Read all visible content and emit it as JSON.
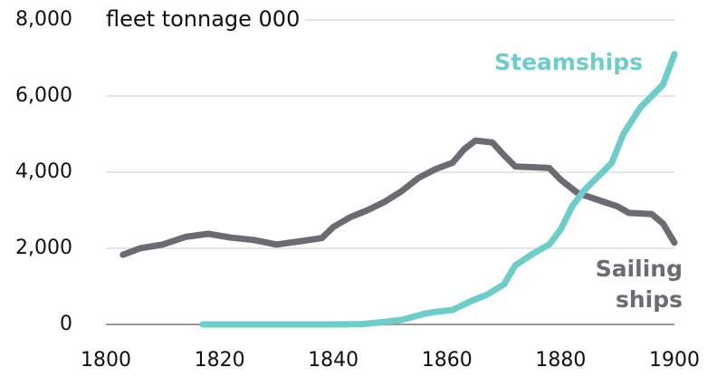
{
  "chart_data": {
    "type": "line",
    "title": "fleet tonnage 000",
    "xlim": [
      1800,
      1900
    ],
    "xticks": [
      1800,
      1820,
      1840,
      1860,
      1880,
      1900
    ],
    "ylim": [
      0,
      8000
    ],
    "yticks": [
      0,
      {
        "value": 2000,
        "label": "2,000"
      },
      {
        "value": 4000,
        "label": "4,000"
      },
      {
        "value": 6000,
        "label": "6,000"
      },
      {
        "value": 8000,
        "label": "8,000"
      }
    ],
    "grid": true,
    "series": [
      {
        "name": "Sailing ships",
        "color": "#6b6b73",
        "x": [
          1803,
          1806,
          1810,
          1814,
          1818,
          1822,
          1826,
          1830,
          1834,
          1838,
          1840,
          1843,
          1846,
          1849,
          1852,
          1855,
          1858,
          1861,
          1863,
          1865,
          1868,
          1870,
          1872,
          1875,
          1878,
          1880,
          1883,
          1887,
          1890,
          1892,
          1896,
          1898,
          1900
        ],
        "values": [
          1830,
          2000,
          2100,
          2300,
          2380,
          2280,
          2220,
          2100,
          2180,
          2270,
          2560,
          2820,
          3000,
          3220,
          3500,
          3850,
          4080,
          4250,
          4600,
          4830,
          4780,
          4450,
          4150,
          4130,
          4110,
          3800,
          3450,
          3250,
          3100,
          2930,
          2900,
          2650,
          2150
        ]
      },
      {
        "name": "Steamships",
        "color": "#6ccdc9",
        "x": [
          1817,
          1830,
          1840,
          1845,
          1848,
          1852,
          1856,
          1858,
          1861,
          1864,
          1867,
          1870,
          1872,
          1875,
          1878,
          1880,
          1882,
          1884,
          1887,
          1889,
          1891,
          1894,
          1896,
          1898,
          1900
        ],
        "values": [
          0,
          0,
          0,
          10,
          50,
          120,
          280,
          330,
          380,
          600,
          780,
          1050,
          1550,
          1850,
          2100,
          2500,
          3100,
          3500,
          3950,
          4250,
          5000,
          5700,
          6000,
          6300,
          7100
        ]
      }
    ]
  }
}
